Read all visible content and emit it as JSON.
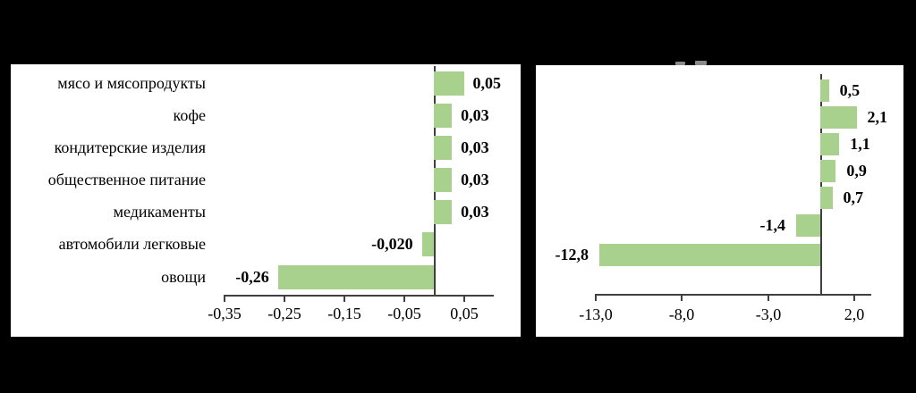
{
  "page": {
    "background_color": "#000000",
    "panel_color": "#ffffff"
  },
  "chart_data": [
    {
      "type": "bar",
      "orientation": "horizontal",
      "title": "",
      "categories": [
        "мясо и мясопродукты",
        "кофе",
        "кондитерские изделия",
        "общественное питание",
        "медикаменты",
        "автомобили легковые",
        "овощи"
      ],
      "values": [
        0.05,
        0.03,
        0.03,
        0.03,
        0.03,
        -0.02,
        -0.26
      ],
      "value_labels": [
        "0,05",
        "0,03",
        "0,03",
        "0,03",
        "0,03",
        "-0,020",
        "-0,26"
      ],
      "x_tick_values": [
        -0.35,
        -0.25,
        -0.15,
        -0.05,
        0.05
      ],
      "x_tick_labels": [
        "-0,35",
        "-0,25",
        "-0,15",
        "-0,05",
        "0,05"
      ],
      "xlim": [
        -0.37,
        0.1
      ],
      "bar_color": "#a9d18e",
      "axis_color": "#404040",
      "grid": false,
      "legend": null,
      "xlabel": "",
      "ylabel": ""
    },
    {
      "type": "bar",
      "orientation": "horizontal",
      "title": "",
      "categories": [],
      "values": [
        0.5,
        2.1,
        1.1,
        0.9,
        0.7,
        -1.4,
        -12.8
      ],
      "value_labels": [
        "0,5",
        "2,1",
        "1,1",
        "0,9",
        "0,7",
        "-1,4",
        "-12,8"
      ],
      "x_tick_values": [
        -13.0,
        -8.0,
        -3.0,
        2.0
      ],
      "x_tick_labels": [
        "-13,0",
        "-8,0",
        "-3,0",
        "2,0"
      ],
      "xlim": [
        -13.5,
        3.0
      ],
      "bar_color": "#a9d18e",
      "axis_color": "#404040",
      "grid": false,
      "legend": null,
      "xlabel": "",
      "ylabel": ""
    }
  ]
}
